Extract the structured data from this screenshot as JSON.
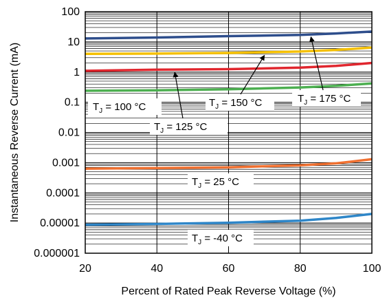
{
  "chart_data": {
    "type": "line",
    "title": "",
    "xlabel": "Percent of Rated Peak Reverse Voltage (%)",
    "ylabel": "Instantaneous Reverse Current (mA)",
    "xlim": [
      20,
      100
    ],
    "ylim": [
      1e-06,
      100
    ],
    "yscale": "log",
    "grid": true,
    "x_ticks": [
      "20",
      "40",
      "60",
      "80",
      "100"
    ],
    "y_ticks": [
      "0.000001",
      "0.00001",
      "0.0001",
      "0.001",
      "0.01",
      "0.1",
      "1",
      "10",
      "100"
    ],
    "series": [
      {
        "name": "T_J = 175 °C",
        "color": "#2e4e8c",
        "x": [
          20,
          40,
          60,
          80,
          90,
          100
        ],
        "y": [
          13,
          14,
          15.5,
          17,
          19,
          22
        ]
      },
      {
        "name": "T_J = 150 °C",
        "color": "#f5c000",
        "x": [
          20,
          40,
          60,
          80,
          90,
          100
        ],
        "y": [
          4,
          4.1,
          4.3,
          4.8,
          5.4,
          6.5
        ]
      },
      {
        "name": "T_J = 125 °C",
        "color": "#e0262e",
        "x": [
          20,
          40,
          60,
          80,
          90,
          100
        ],
        "y": [
          1.1,
          1.2,
          1.25,
          1.4,
          1.6,
          2
        ]
      },
      {
        "name": "T_J = 100 °C",
        "color": "#4caf50",
        "x": [
          20,
          40,
          60,
          80,
          90,
          100
        ],
        "y": [
          0.24,
          0.25,
          0.27,
          0.31,
          0.35,
          0.42
        ]
      },
      {
        "name": "T_J = 25 °C",
        "color": "#f07030",
        "x": [
          20,
          40,
          60,
          80,
          90,
          100
        ],
        "y": [
          0.00063,
          0.00066,
          0.0007,
          0.00082,
          0.00095,
          0.0013
        ]
      },
      {
        "name": "T_J = -40 °C",
        "color": "#2e86c8",
        "x": [
          20,
          40,
          60,
          80,
          90,
          100
        ],
        "y": [
          8.8e-06,
          9.3e-06,
          1.02e-05,
          1.2e-05,
          1.48e-05,
          2e-05
        ]
      }
    ],
    "annotations": [
      {
        "main": "T",
        "sub": "J",
        "rest": " = 175 °C",
        "target": [
          83,
          18
        ]
      },
      {
        "main": "T",
        "sub": "J",
        "rest": " = 150 °C",
        "target": [
          70,
          4.4
        ]
      },
      {
        "main": "T",
        "sub": "J",
        "rest": " = 125 °C",
        "target": [
          45,
          1.2
        ]
      },
      {
        "main": "T",
        "sub": "J",
        "rest": " = 100 °C",
        "target": null
      },
      {
        "main": "T",
        "sub": "J",
        "rest": " = 25 °C",
        "target": null
      },
      {
        "main": "T",
        "sub": "J",
        "rest": " = -40 °C",
        "target": null
      }
    ]
  }
}
